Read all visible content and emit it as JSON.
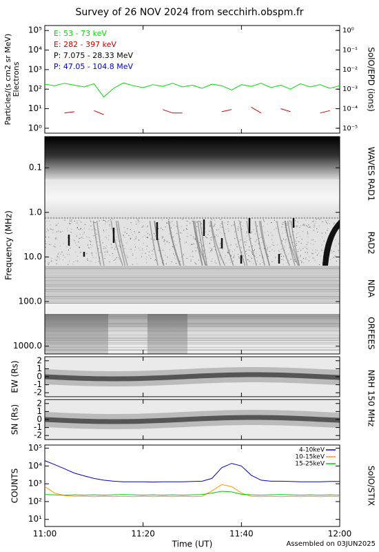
{
  "title": "Survey of 26 NOV 2024 from secchirh.obspm.fr",
  "footer": "Assembled on 03JUN2025",
  "chart_data": [
    {
      "type": "line",
      "log": true,
      "ylabel": [
        "Particles/(s cm2 sr MeV)",
        "Electrons"
      ],
      "y2label": "SolO/EPD (ions)",
      "xlim": [
        "11:00",
        "12:00"
      ],
      "x": [
        "11:00",
        "11:02",
        "11:04",
        "11:06",
        "11:08",
        "11:10",
        "11:12",
        "11:14",
        "11:16",
        "11:18",
        "11:20",
        "11:22",
        "11:24",
        "11:26",
        "11:28",
        "11:30",
        "11:32",
        "11:34",
        "11:36",
        "11:38",
        "11:40",
        "11:42",
        "11:44",
        "11:46",
        "11:48",
        "11:50",
        "11:52",
        "11:54",
        "11:56",
        "11:58",
        "12:00"
      ],
      "ylim": [
        0.56,
        180000
      ],
      "yticks": [
        {
          "value": 1,
          "label": "10⁰"
        },
        {
          "value": 10,
          "label": "10¹"
        },
        {
          "value": 100,
          "label": "10²"
        },
        {
          "value": 1000,
          "label": "10³"
        },
        {
          "value": 10000,
          "label": "10⁴"
        },
        {
          "value": 100000,
          "label": "10⁵"
        }
      ],
      "y2lim": [
        5.6e-06,
        1.8
      ],
      "y2ticks": [
        {
          "value": 1e-05,
          "label": "10⁻⁵"
        },
        {
          "value": 0.0001,
          "label": "10⁻⁴"
        },
        {
          "value": 0.001,
          "label": "10⁻³"
        },
        {
          "value": 0.01,
          "label": "10⁻²"
        },
        {
          "value": 0.1,
          "label": "10⁻¹"
        },
        {
          "value": 1,
          "label": "10⁰"
        }
      ],
      "series": [
        {
          "name": "E: 53 - 73 keV",
          "color": "#00dd00",
          "values": [
            180,
            150,
            200,
            160,
            130,
            190,
            40,
            110,
            210,
            150,
            120,
            170,
            140,
            200,
            130,
            160,
            110,
            180,
            150,
            90,
            170,
            140,
            200,
            120,
            160,
            100,
            190,
            130,
            170,
            110,
            150
          ]
        },
        {
          "name": "E: 282 - 397 keV",
          "color": "#cc0000",
          "values": [
            null,
            null,
            6,
            7,
            null,
            8,
            5,
            null,
            null,
            null,
            null,
            null,
            9,
            6,
            6,
            null,
            null,
            null,
            7,
            9,
            null,
            12,
            6,
            null,
            10,
            7,
            null,
            null,
            6,
            8,
            null
          ]
        },
        {
          "name": "P: 7.075 - 28.33 MeV",
          "color": "#000000"
        },
        {
          "name": "P: 47.05 - 104.8 MeV",
          "color": "#0000cc"
        }
      ]
    },
    {
      "type": "spectrogram",
      "log": true,
      "y_inverted": true,
      "ylabel": "Frequency (MHz)",
      "ylim": [
        0.02,
        1500
      ],
      "yticks": [
        0.1,
        {
          "value": 1,
          "label": "1.0"
        },
        {
          "value": 10,
          "label": "10.0"
        },
        {
          "value": 100,
          "label": "100.0"
        },
        {
          "value": 1000,
          "label": "1000.0"
        }
      ],
      "side_labels": [
        "WAVES RAD1",
        "RAD2",
        "NDA",
        "ORFEES"
      ]
    },
    {
      "type": "position",
      "ylabel": "EW (Rs)",
      "side_label": "NRH 150 MHz",
      "ylim": [
        -2.5,
        2.5
      ],
      "yticks": [
        -2,
        -1,
        0,
        1,
        2
      ]
    },
    {
      "type": "position",
      "ylabel": "SN (Rs)",
      "ylim": [
        -2.5,
        2.5
      ],
      "yticks": [
        -2,
        -1,
        0,
        1,
        2
      ]
    },
    {
      "type": "line",
      "log": true,
      "ylabel": "COUNTS",
      "side_label": "SolO/STIX",
      "xlabel": "Time (UT)",
      "xlim": [
        "11:00",
        "12:00"
      ],
      "xticks": [
        "11:00",
        "11:20",
        "11:40",
        "12:00"
      ],
      "x": [
        "11:00",
        "11:02",
        "11:04",
        "11:06",
        "11:08",
        "11:10",
        "11:12",
        "11:14",
        "11:16",
        "11:18",
        "11:20",
        "11:22",
        "11:24",
        "11:26",
        "11:28",
        "11:30",
        "11:32",
        "11:34",
        "11:36",
        "11:38",
        "11:40",
        "11:42",
        "11:44",
        "11:46",
        "11:48",
        "11:50",
        "11:52",
        "11:54",
        "11:56",
        "11:58",
        "12:00"
      ],
      "ylim": [
        4,
        150000
      ],
      "yticks": [
        {
          "value": 10,
          "label": "10¹"
        },
        {
          "value": 100,
          "label": "10²"
        },
        {
          "value": 1000,
          "label": "10³"
        },
        {
          "value": 10000,
          "label": "10⁴"
        },
        {
          "value": 100000,
          "label": "10⁵"
        }
      ],
      "series": [
        {
          "name": "4-10keV",
          "color": "#0000cc",
          "values": [
            20000,
            12000,
            7000,
            4000,
            2800,
            2000,
            1600,
            1400,
            1300,
            1300,
            1300,
            1250,
            1300,
            1300,
            1300,
            1350,
            1400,
            2000,
            8000,
            14000,
            10000,
            3000,
            1600,
            1400,
            1400,
            1350,
            1300,
            1300,
            1300,
            1350,
            1350
          ]
        },
        {
          "name": "10-15keV",
          "color": "#ff9900",
          "values": [
            700,
            300,
            220,
            200,
            200,
            190,
            200,
            190,
            200,
            190,
            200,
            190,
            200,
            190,
            200,
            190,
            200,
            400,
            900,
            700,
            300,
            200,
            190,
            200,
            190,
            200,
            190,
            200,
            190,
            200,
            190
          ]
        },
        {
          "name": "15-25keV",
          "color": "#00cc00",
          "values": [
            250,
            240,
            230,
            240,
            230,
            240,
            230,
            240,
            250,
            240,
            230,
            240,
            230,
            240,
            230,
            240,
            250,
            300,
            380,
            350,
            260,
            240,
            230,
            240,
            250,
            240,
            230,
            240,
            230,
            240,
            230
          ]
        }
      ]
    }
  ]
}
